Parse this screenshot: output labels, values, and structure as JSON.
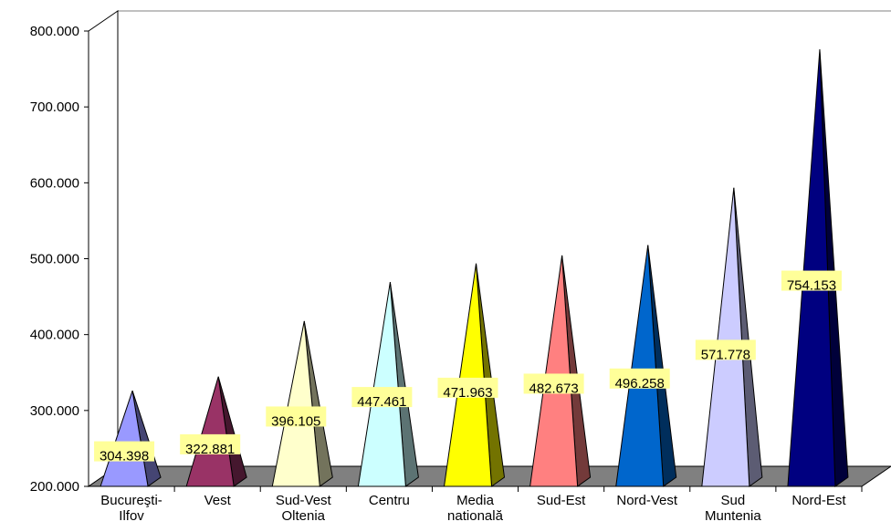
{
  "chart_data": {
    "type": "bar",
    "title": "",
    "xlabel": "",
    "ylabel": "",
    "ylim": [
      200000,
      800000
    ],
    "yticks": [
      "200.000",
      "300.000",
      "400.000",
      "500.000",
      "600.000",
      "700.000",
      "800.000"
    ],
    "grid": false,
    "legend": "none",
    "categories": [
      [
        "Bucureşti-",
        "Ilfov"
      ],
      [
        "Vest"
      ],
      [
        "Sud-Vest",
        "Oltenia"
      ],
      [
        "Centru"
      ],
      [
        "Media",
        "natională"
      ],
      [
        "Sud-Est"
      ],
      [
        "Nord-Vest"
      ],
      [
        "Sud",
        "Muntenia"
      ],
      [
        "Nord-Est"
      ]
    ],
    "values": [
      304398,
      322881,
      396105,
      447461,
      471963,
      482673,
      496258,
      571778,
      754153
    ],
    "labels": [
      "304.398",
      "322.881",
      "396.105",
      "447.461",
      "471.963",
      "482.673",
      "496.258",
      "571.778",
      "754.153"
    ],
    "colors": [
      "#9999ff",
      "#993366",
      "#ffffcc",
      "#ccffff",
      "#ffff00",
      "#ff8080",
      "#0066cc",
      "#ccccff",
      "#000080"
    ],
    "label_bg": "#ffff99",
    "floor_color": "#808080"
  }
}
